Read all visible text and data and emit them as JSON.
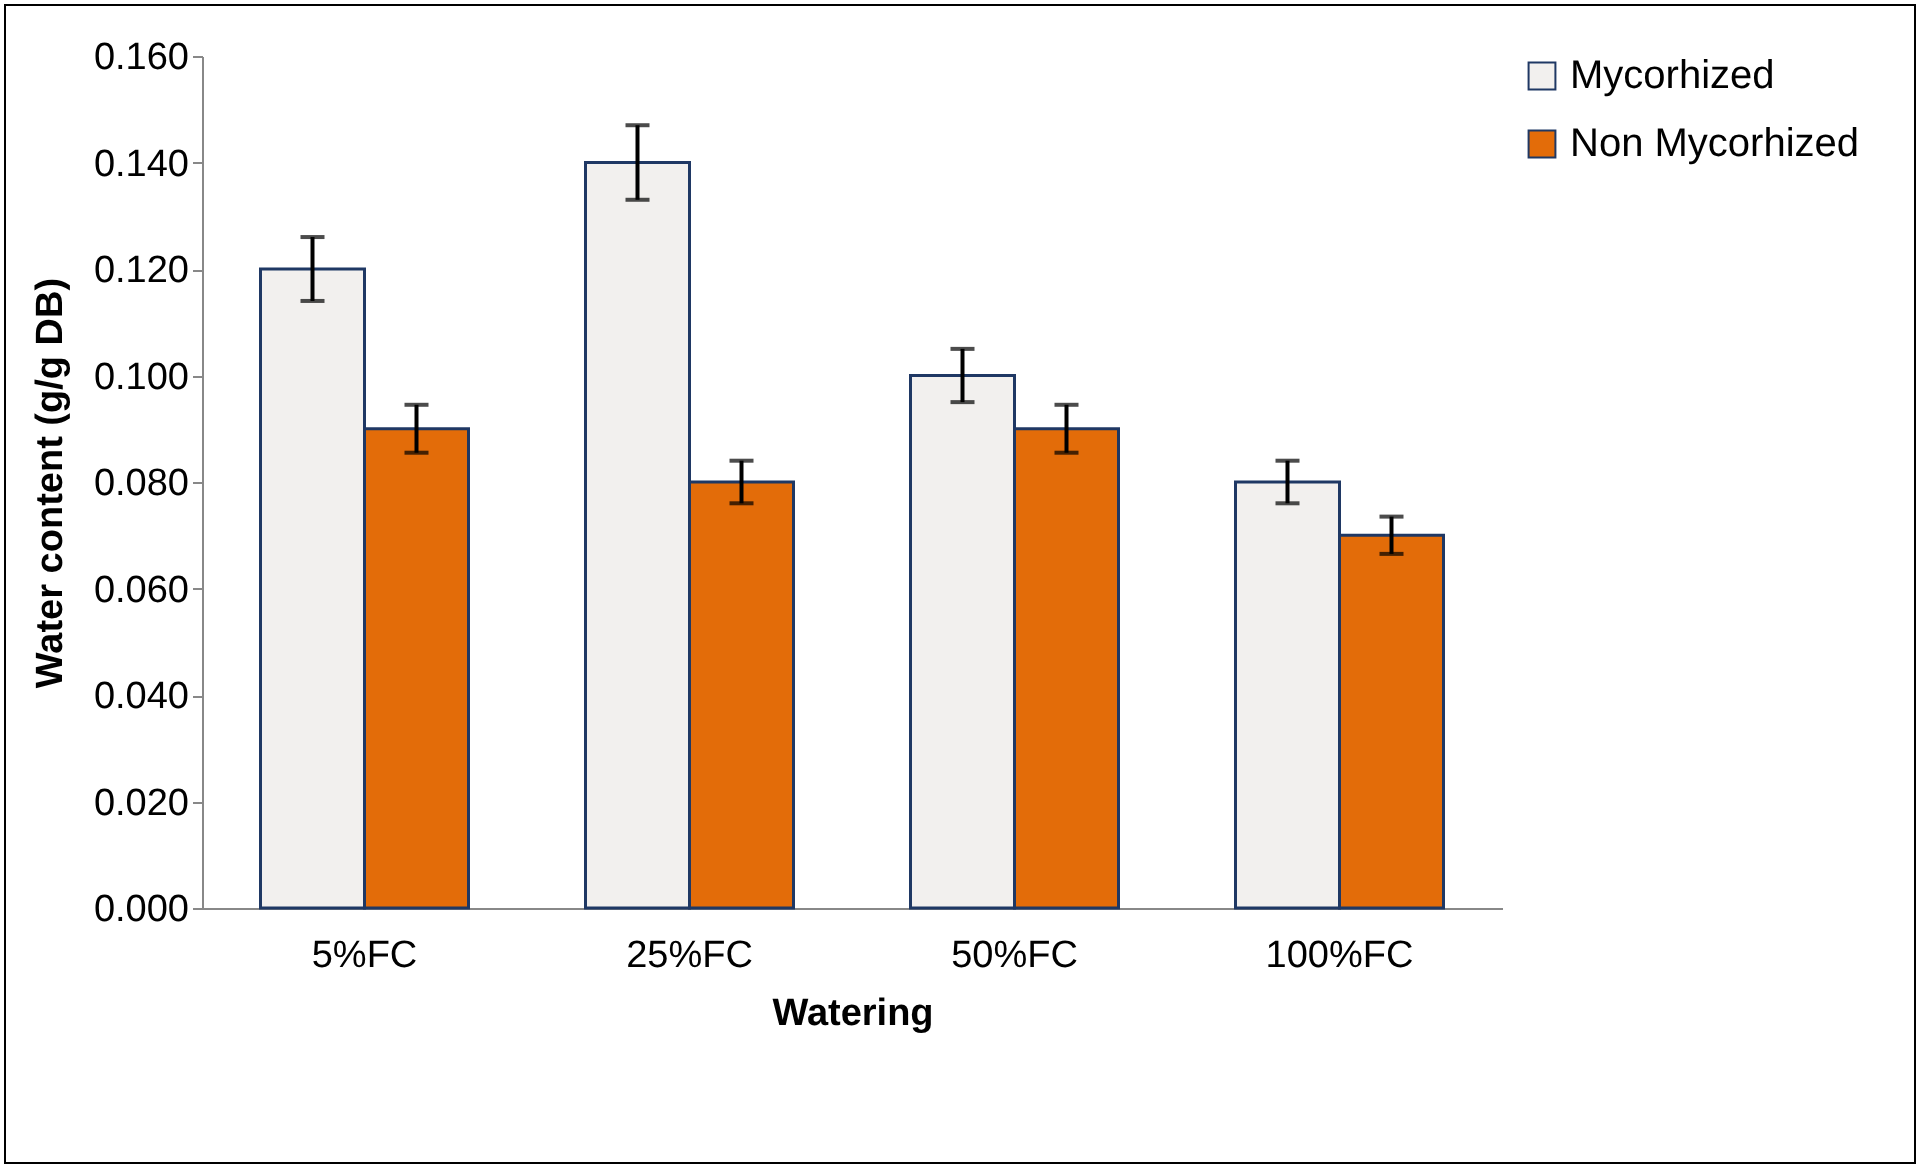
{
  "chart_data": {
    "type": "bar",
    "xlabel": "Watering",
    "ylabel": "Water content (g/g DB)",
    "categories": [
      "5%FC",
      "25%FC",
      "50%FC",
      "100%FC"
    ],
    "series": [
      {
        "name": "Mycorhized",
        "color": "#f2f0ee",
        "values": [
          0.12,
          0.14,
          0.1,
          0.08
        ],
        "errors": [
          0.006,
          0.007,
          0.005,
          0.004
        ]
      },
      {
        "name": "Non Mycorhized",
        "color": "#e36c09",
        "values": [
          0.09,
          0.08,
          0.09,
          0.07
        ],
        "errors": [
          0.0045,
          0.004,
          0.0045,
          0.0035
        ]
      }
    ],
    "ylim": [
      0,
      0.16
    ],
    "yticks": [
      {
        "value": 0,
        "label": "0.000"
      },
      {
        "value": 0.02,
        "label": "0.020"
      },
      {
        "value": 0.04,
        "label": "0.040"
      },
      {
        "value": 0.06,
        "label": "0.060"
      },
      {
        "value": 0.08,
        "label": "0.080"
      },
      {
        "value": 0.1,
        "label": "0.100"
      },
      {
        "value": 0.12,
        "label": "0.120"
      },
      {
        "value": 0.14,
        "label": "0.140"
      },
      {
        "value": 0.16,
        "label": "0.160"
      }
    ],
    "grid": false,
    "legend": "top right"
  }
}
